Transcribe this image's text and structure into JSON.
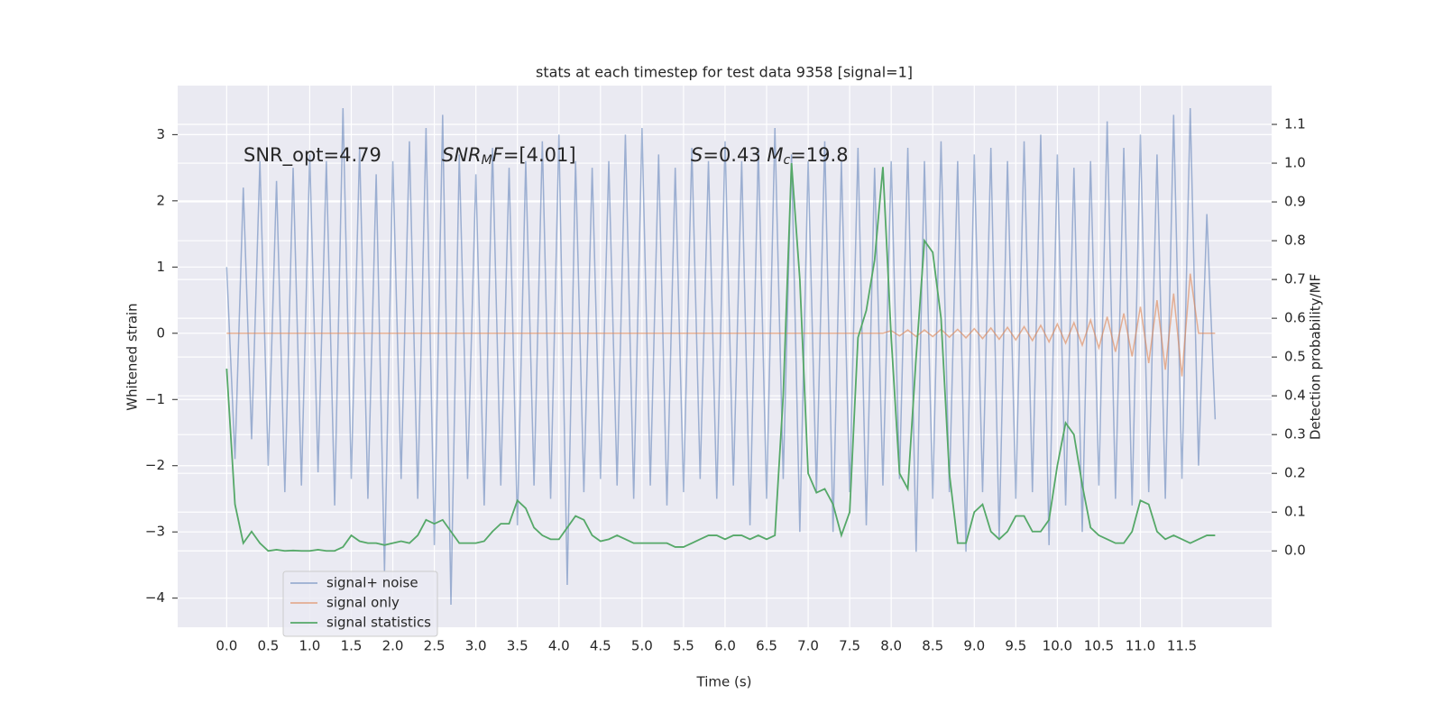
{
  "chart_data": {
    "type": "line",
    "title": "stats at each timestep for test data 9358 [signal=1]",
    "xlabel": "Time (s)",
    "ylabel": "Whitened strain",
    "y2label": "Detection probability/MF",
    "annotations": [
      [
        {
          "text": "SNR_opt=4.79"
        }
      ],
      [
        {
          "text": "SNR",
          "style": "italic"
        },
        {
          "text": "M",
          "style": "italic-sub"
        },
        {
          "text": "F",
          "style": "italic"
        },
        {
          "text": "=[4.01]"
        }
      ],
      [
        {
          "text": "S",
          "style": "italic"
        },
        {
          "text": "=0.43   "
        },
        {
          "text": "M",
          "style": "italic"
        },
        {
          "text": "c",
          "style": "italic-sub"
        },
        {
          "text": "=19.8"
        }
      ]
    ],
    "x": [
      0.0,
      0.1,
      0.2,
      0.3,
      0.4,
      0.5,
      0.6,
      0.7,
      0.8,
      0.9,
      1.0,
      1.1,
      1.2,
      1.3,
      1.4,
      1.5,
      1.6,
      1.7,
      1.8,
      1.9,
      2.0,
      2.1,
      2.2,
      2.3,
      2.4,
      2.5,
      2.6,
      2.7,
      2.8,
      2.9,
      3.0,
      3.1,
      3.2,
      3.3,
      3.4,
      3.5,
      3.6,
      3.7,
      3.8,
      3.9,
      4.0,
      4.1,
      4.2,
      4.3,
      4.4,
      4.5,
      4.6,
      4.7,
      4.8,
      4.9,
      5.0,
      5.1,
      5.2,
      5.3,
      5.4,
      5.5,
      5.6,
      5.7,
      5.8,
      5.9,
      6.0,
      6.1,
      6.2,
      6.3,
      6.4,
      6.5,
      6.6,
      6.7,
      6.8,
      6.9,
      7.0,
      7.1,
      7.2,
      7.3,
      7.4,
      7.5,
      7.6,
      7.7,
      7.8,
      7.9,
      8.0,
      8.1,
      8.2,
      8.3,
      8.4,
      8.5,
      8.6,
      8.7,
      8.8,
      8.9,
      9.0,
      9.1,
      9.2,
      9.3,
      9.4,
      9.5,
      9.6,
      9.7,
      9.8,
      9.9,
      10.0,
      10.1,
      10.2,
      10.3,
      10.4,
      10.5,
      10.6,
      10.7,
      10.8,
      10.9,
      11.0,
      11.1,
      11.2,
      11.3,
      11.4,
      11.5,
      11.6,
      11.7,
      11.8,
      11.9
    ],
    "series": [
      {
        "name": "signal+ noise",
        "color": "#4c72b0",
        "opacity": 0.5,
        "values": [
          1.0,
          -1.9,
          2.2,
          -1.6,
          2.6,
          -2.0,
          2.3,
          -2.4,
          2.5,
          -2.3,
          2.7,
          -2.1,
          2.6,
          -2.6,
          3.4,
          -2.2,
          2.8,
          -2.5,
          2.4,
          -3.6,
          2.6,
          -2.2,
          2.9,
          -2.5,
          3.1,
          -3.2,
          3.3,
          -4.1,
          2.7,
          -2.2,
          2.4,
          -2.6,
          2.8,
          -2.3,
          2.5,
          -2.9,
          2.6,
          -2.3,
          2.9,
          -2.5,
          3.0,
          -3.8,
          2.6,
          -2.4,
          2.5,
          -2.2,
          2.6,
          -2.3,
          3.0,
          -2.5,
          3.1,
          -2.3,
          2.7,
          -2.6,
          2.5,
          -2.4,
          2.8,
          -2.2,
          2.6,
          -2.5,
          2.9,
          -2.3,
          2.6,
          -2.9,
          2.8,
          -2.5,
          3.1,
          -2.2,
          2.7,
          -3.0,
          2.6,
          -2.4,
          2.9,
          -3.0,
          2.6,
          -2.4,
          2.8,
          -2.9,
          2.5,
          -2.3,
          2.6,
          -2.2,
          2.8,
          -3.3,
          2.6,
          -2.5,
          2.9,
          -2.4,
          2.6,
          -3.3,
          2.7,
          -2.4,
          2.8,
          -3.1,
          2.6,
          -2.5,
          2.9,
          -2.4,
          3.0,
          -3.2,
          2.7,
          -2.6,
          2.5,
          -3.0,
          2.6,
          -2.3,
          3.2,
          -2.5,
          2.8,
          -2.6,
          3.0,
          -2.4,
          2.7,
          -2.5,
          3.3,
          -2.2,
          3.4,
          -2.0,
          1.8,
          -1.3
        ]
      },
      {
        "name": "signal only",
        "color": "#dd8452",
        "opacity": 0.6,
        "values": [
          0,
          0,
          0,
          0,
          0,
          0,
          0,
          0,
          0,
          0,
          0,
          0,
          0,
          0,
          0,
          0,
          0,
          0,
          0,
          0,
          0,
          0,
          0,
          0,
          0,
          0,
          0,
          0,
          0,
          0,
          0,
          0,
          0,
          0,
          0,
          0,
          0,
          0,
          0,
          0,
          0,
          0,
          0,
          0,
          0,
          0,
          0,
          0,
          0,
          0,
          0,
          0,
          0,
          0,
          0,
          0,
          0,
          0,
          0,
          0,
          0,
          0,
          0,
          0,
          0,
          0,
          0,
          0,
          0,
          0,
          0,
          0,
          0,
          0,
          0,
          0,
          0,
          0,
          0,
          0,
          0.04,
          -0.04,
          0.05,
          -0.05,
          0.05,
          -0.05,
          0.06,
          -0.06,
          0.06,
          -0.07,
          0.07,
          -0.08,
          0.08,
          -0.09,
          0.09,
          -0.1,
          0.1,
          -0.11,
          0.12,
          -0.13,
          0.14,
          -0.15,
          0.16,
          -0.18,
          0.2,
          -0.22,
          0.25,
          -0.28,
          0.3,
          -0.35,
          0.4,
          -0.45,
          0.5,
          -0.55,
          0.6,
          -0.65,
          0.9,
          0,
          0,
          0
        ]
      },
      {
        "name": "signal statistics",
        "color": "#55a868",
        "opacity": 1,
        "axis": "y2",
        "values": [
          0.47,
          0.12,
          0.02,
          0.05,
          0.02,
          0.0,
          0.003,
          0.0,
          0.001,
          0.0,
          0.0,
          0.003,
          0.0,
          0.0,
          0.01,
          0.04,
          0.025,
          0.02,
          0.02,
          0.015,
          0.02,
          0.025,
          0.02,
          0.04,
          0.08,
          0.07,
          0.08,
          0.05,
          0.02,
          0.02,
          0.02,
          0.025,
          0.05,
          0.07,
          0.07,
          0.13,
          0.11,
          0.06,
          0.04,
          0.03,
          0.03,
          0.06,
          0.09,
          0.08,
          0.04,
          0.025,
          0.03,
          0.04,
          0.03,
          0.02,
          0.02,
          0.02,
          0.02,
          0.02,
          0.01,
          0.01,
          0.02,
          0.03,
          0.04,
          0.04,
          0.03,
          0.04,
          0.04,
          0.03,
          0.04,
          0.03,
          0.04,
          0.4,
          1.0,
          0.7,
          0.2,
          0.15,
          0.16,
          0.12,
          0.04,
          0.1,
          0.55,
          0.62,
          0.75,
          0.99,
          0.55,
          0.2,
          0.16,
          0.5,
          0.8,
          0.77,
          0.6,
          0.2,
          0.02,
          0.02,
          0.1,
          0.12,
          0.05,
          0.03,
          0.05,
          0.09,
          0.09,
          0.05,
          0.05,
          0.08,
          0.22,
          0.33,
          0.3,
          0.17,
          0.06,
          0.04,
          0.03,
          0.02,
          0.02,
          0.05,
          0.13,
          0.12,
          0.05,
          0.03,
          0.04,
          0.03,
          0.02,
          0.03,
          0.04,
          0.04
        ]
      }
    ],
    "xlim": [
      -0.59,
      12.58
    ],
    "xticks": [
      {
        "value": 0,
        "label": "0.0"
      },
      0.5,
      {
        "value": 1,
        "label": "1.0"
      },
      1.5,
      {
        "value": 2,
        "label": "2.0"
      },
      2.5,
      {
        "value": 3,
        "label": "3.0"
      },
      3.5,
      {
        "value": 4,
        "label": "4.0"
      },
      4.5,
      {
        "value": 5,
        "label": "5.0"
      },
      5.5,
      {
        "value": 6,
        "label": "6.0"
      },
      6.5,
      {
        "value": 7,
        "label": "7.0"
      },
      7.5,
      {
        "value": 8,
        "label": "8.0"
      },
      8.5,
      {
        "value": 9,
        "label": "9.0"
      },
      9.5,
      {
        "value": 10,
        "label": "10.0"
      },
      10.5,
      {
        "value": 11,
        "label": "11.0"
      },
      11.5
    ],
    "ylim": [
      -4.44,
      3.74
    ],
    "yticks": [
      {
        "value": -4,
        "label": "−4"
      },
      {
        "value": -3,
        "label": "−3"
      },
      {
        "value": -2,
        "label": "−2"
      },
      {
        "value": -1,
        "label": "−1"
      },
      0,
      1,
      2,
      3
    ],
    "y2lim": [
      -0.197,
      1.2
    ],
    "y2ticks": [
      {
        "value": 0,
        "label": "0.0"
      },
      0.1,
      0.2,
      0.3,
      0.4,
      0.5,
      0.6,
      0.7,
      0.8,
      0.9,
      {
        "value": 1,
        "label": "1.0"
      },
      1.1
    ],
    "grid": true,
    "legend": "lower left"
  }
}
